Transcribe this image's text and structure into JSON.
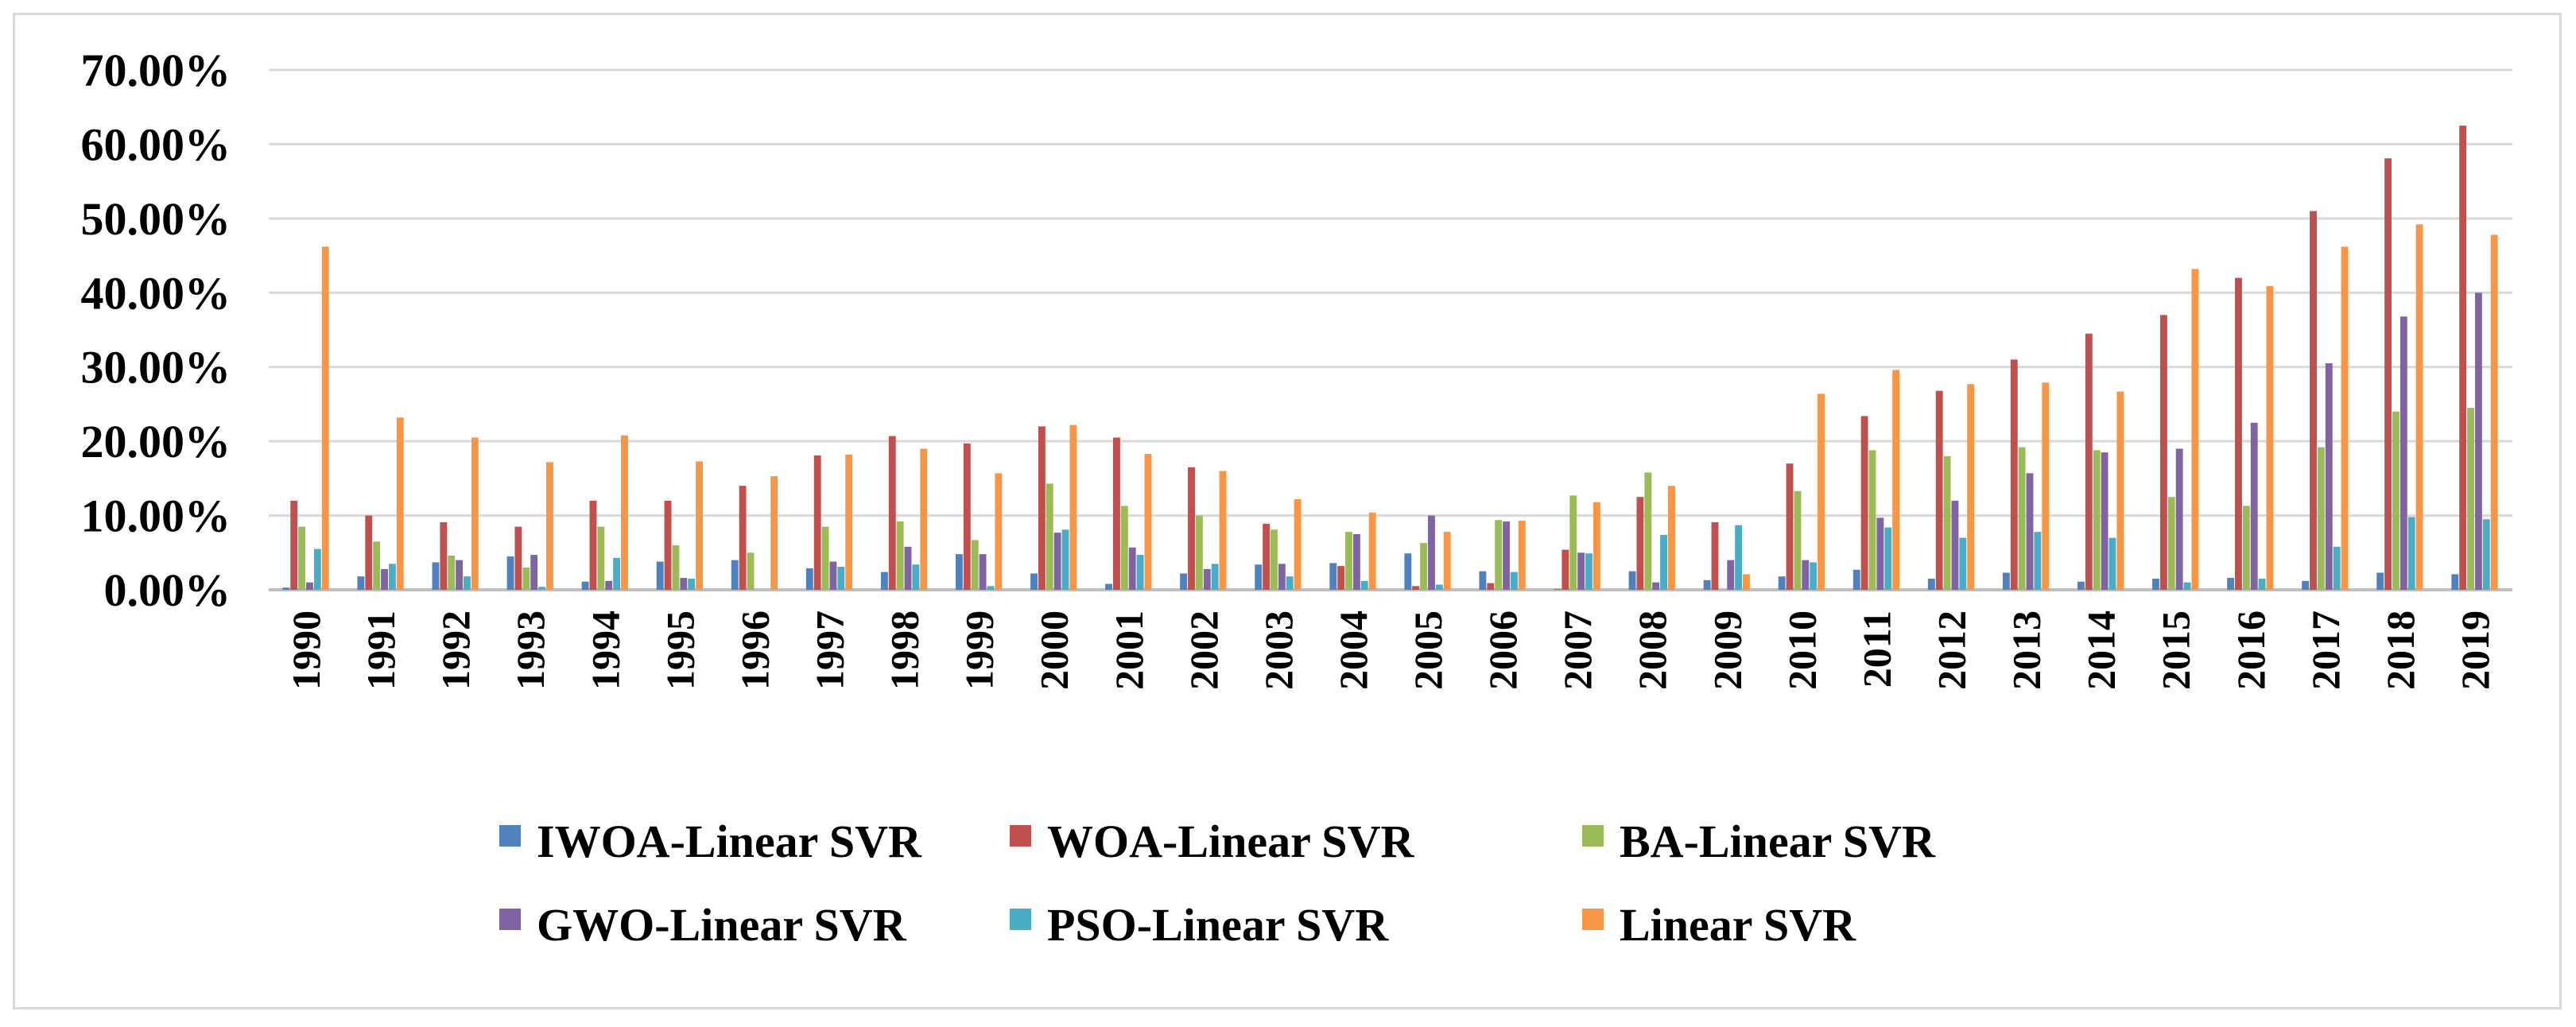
{
  "chart_data": {
    "type": "bar",
    "title": "",
    "xlabel": "",
    "ylabel": "",
    "ylim": [
      0,
      0.7
    ],
    "ytick_values": [
      0,
      0.1,
      0.2,
      0.3,
      0.4,
      0.5,
      0.6,
      0.7
    ],
    "ytick_labels": [
      "0.00%",
      "10.00%",
      "20.00%",
      "30.00%",
      "40.00%",
      "50.00%",
      "60.00%",
      "70.00%"
    ],
    "grid": true,
    "legend_position": "bottom",
    "categories": [
      "1990",
      "1991",
      "1992",
      "1993",
      "1994",
      "1995",
      "1996",
      "1997",
      "1998",
      "1999",
      "2000",
      "2001",
      "2002",
      "2003",
      "2004",
      "2005",
      "2006",
      "2007",
      "2008",
      "2009",
      "2010",
      "2011",
      "2012",
      "2013",
      "2014",
      "2015",
      "2016",
      "2017",
      "2018",
      "2019"
    ],
    "series": [
      {
        "name": "IWOA-Linear SVR",
        "color": "#4f81bd",
        "values": [
          0.003,
          0.018,
          0.037,
          0.045,
          0.011,
          0.038,
          0.04,
          0.029,
          0.024,
          0.048,
          0.022,
          0.008,
          0.022,
          0.034,
          0.036,
          0.049,
          0.025,
          0.001,
          0.025,
          0.013,
          0.018,
          0.027,
          0.015,
          0.023,
          0.011,
          0.015,
          0.016,
          0.012,
          0.023,
          0.021
        ]
      },
      {
        "name": "WOA-Linear SVR",
        "color": "#c0504d",
        "values": [
          0.12,
          0.1,
          0.091,
          0.085,
          0.12,
          0.12,
          0.14,
          0.181,
          0.207,
          0.197,
          0.22,
          0.205,
          0.165,
          0.089,
          0.032,
          0.005,
          0.009,
          0.054,
          0.125,
          0.091,
          0.17,
          0.234,
          0.268,
          0.31,
          0.345,
          0.37,
          0.42,
          0.51,
          0.581,
          0.625
        ]
      },
      {
        "name": "BA-Linear SVR",
        "color": "#9bbb59",
        "values": [
          0.085,
          0.065,
          0.046,
          0.03,
          0.085,
          0.06,
          0.05,
          0.085,
          0.092,
          0.067,
          0.143,
          0.113,
          0.1,
          0.081,
          0.078,
          0.063,
          0.094,
          0.127,
          0.158,
          0.0,
          0.133,
          0.188,
          0.18,
          0.192,
          0.188,
          0.125,
          0.113,
          0.192,
          0.24,
          0.245
        ]
      },
      {
        "name": "GWO-Linear SVR",
        "color": "#8064a2",
        "values": [
          0.01,
          0.028,
          0.04,
          0.047,
          0.012,
          0.016,
          0.0,
          0.038,
          0.058,
          0.048,
          0.077,
          0.057,
          0.028,
          0.035,
          0.075,
          0.1,
          0.092,
          0.05,
          0.01,
          0.04,
          0.04,
          0.097,
          0.12,
          0.157,
          0.185,
          0.19,
          0.225,
          0.305,
          0.368,
          0.4
        ]
      },
      {
        "name": "PSO-Linear SVR",
        "color": "#4bacc6",
        "values": [
          0.055,
          0.035,
          0.018,
          0.004,
          0.043,
          0.015,
          0.0,
          0.031,
          0.034,
          0.005,
          0.081,
          0.047,
          0.035,
          0.018,
          0.012,
          0.007,
          0.024,
          0.049,
          0.074,
          0.087,
          0.037,
          0.084,
          0.07,
          0.078,
          0.07,
          0.01,
          0.015,
          0.058,
          0.098,
          0.095
        ]
      },
      {
        "name": "Linear SVR",
        "color": "#f79646",
        "values": [
          0.462,
          0.232,
          0.205,
          0.172,
          0.208,
          0.173,
          0.153,
          0.182,
          0.19,
          0.157,
          0.222,
          0.183,
          0.16,
          0.122,
          0.104,
          0.078,
          0.093,
          0.118,
          0.14,
          0.021,
          0.264,
          0.296,
          0.277,
          0.279,
          0.267,
          0.432,
          0.409,
          0.462,
          0.492,
          0.478
        ]
      }
    ]
  }
}
